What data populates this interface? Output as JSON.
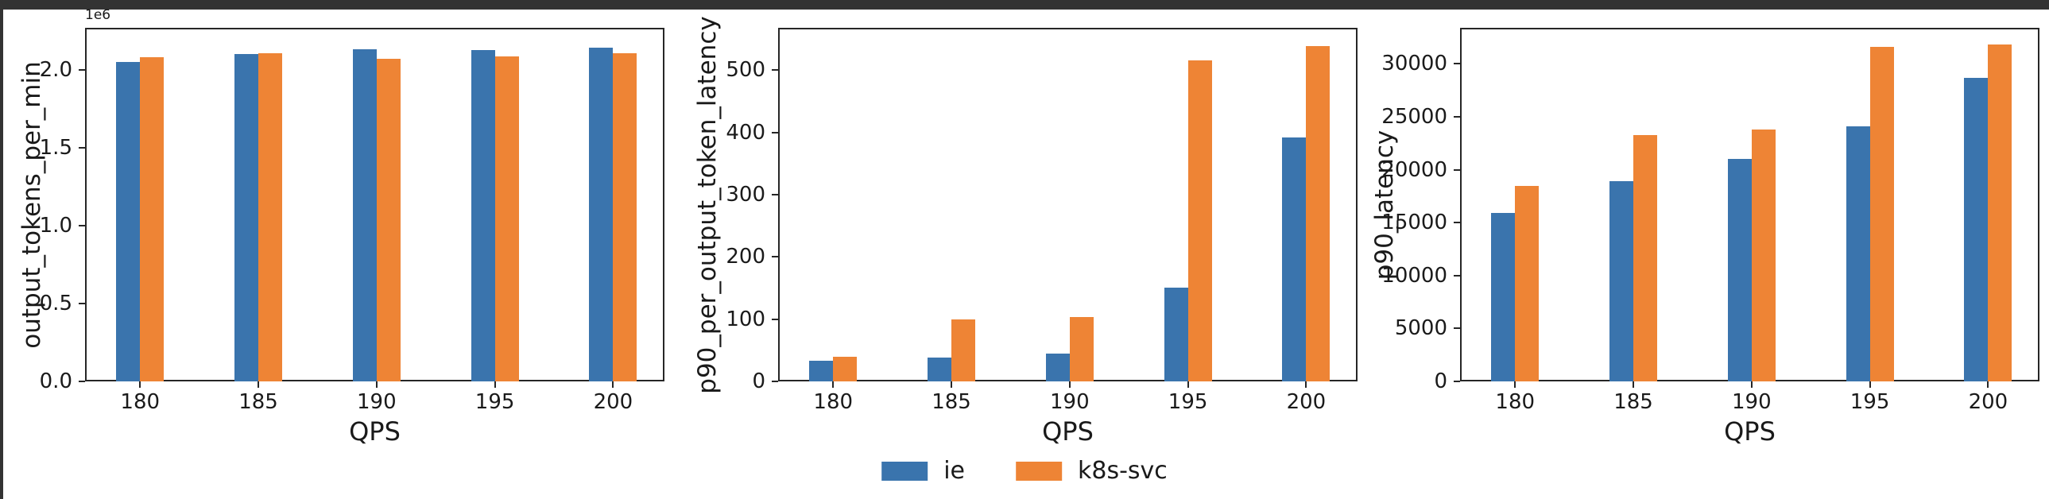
{
  "figure": {
    "type": "matplotlib-figure",
    "background": "#ffffff",
    "frame_color": "#333333",
    "text_color": "#1a1a1a"
  },
  "legend": {
    "position": "bottom-center",
    "items": [
      {
        "label": "ie",
        "color": "#3a74ad"
      },
      {
        "label": "k8s-svc",
        "color": "#ee8435"
      }
    ]
  },
  "chart_data": [
    {
      "type": "bar",
      "title": "",
      "xlabel": "QPS",
      "ylabel": "output_tokens_per_min",
      "offset_text": "1e6",
      "categories": [
        "180",
        "185",
        "190",
        "195",
        "200"
      ],
      "series": [
        {
          "name": "ie",
          "color": "#3a74ad",
          "values": [
            2050000,
            2100000,
            2132000,
            2125000,
            2141000
          ]
        },
        {
          "name": "k8s-svc",
          "color": "#ee8435",
          "values": [
            2083000,
            2108000,
            2072000,
            2085000,
            2108000
          ]
        }
      ],
      "ylim": [
        0,
        2270000
      ],
      "yticks": [
        {
          "label": "0.0",
          "value": 0
        },
        {
          "label": "0.5",
          "value": 500000
        },
        {
          "label": "1.0",
          "value": 1000000
        },
        {
          "label": "1.5",
          "value": 1500000
        },
        {
          "label": "2.0",
          "value": 2000000
        }
      ],
      "grid": false,
      "legend_position": "none"
    },
    {
      "type": "bar",
      "title": "",
      "xlabel": "QPS",
      "ylabel": "p90_per_output_token_latency",
      "offset_text": "",
      "categories": [
        "180",
        "185",
        "190",
        "195",
        "200"
      ],
      "series": [
        {
          "name": "ie",
          "color": "#3a74ad",
          "values": [
            33,
            38,
            45,
            150,
            392
          ]
        },
        {
          "name": "k8s-svc",
          "color": "#ee8435",
          "values": [
            39,
            100,
            104,
            516,
            539
          ]
        }
      ],
      "ylim": [
        0,
        568
      ],
      "yticks": [
        {
          "label": "0",
          "value": 0
        },
        {
          "label": "100",
          "value": 100
        },
        {
          "label": "200",
          "value": 200
        },
        {
          "label": "300",
          "value": 300
        },
        {
          "label": "400",
          "value": 400
        },
        {
          "label": "500",
          "value": 500
        }
      ],
      "grid": false,
      "legend_position": "none"
    },
    {
      "type": "bar",
      "title": "",
      "xlabel": "QPS",
      "ylabel": "p90_latency",
      "offset_text": "",
      "categories": [
        "180",
        "185",
        "190",
        "195",
        "200"
      ],
      "series": [
        {
          "name": "ie",
          "color": "#3a74ad",
          "values": [
            15900,
            18900,
            21000,
            24100,
            28700
          ]
        },
        {
          "name": "k8s-svc",
          "color": "#ee8435",
          "values": [
            18500,
            23300,
            23800,
            31600,
            31800
          ]
        }
      ],
      "ylim": [
        0,
        33400
      ],
      "yticks": [
        {
          "label": "0",
          "value": 0
        },
        {
          "label": "5000",
          "value": 5000
        },
        {
          "label": "10000",
          "value": 10000
        },
        {
          "label": "15000",
          "value": 15000
        },
        {
          "label": "20000",
          "value": 20000
        },
        {
          "label": "25000",
          "value": 25000
        },
        {
          "label": "30000",
          "value": 30000
        }
      ],
      "grid": false,
      "legend_position": "none"
    }
  ]
}
